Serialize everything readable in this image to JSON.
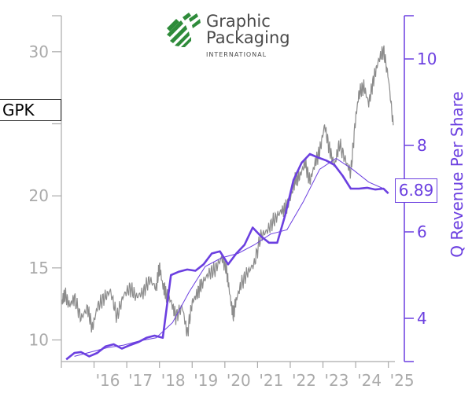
{
  "ticker": "GPK",
  "last_value_label": "6.89",
  "logo": {
    "line1": "Graphic",
    "line2": "Packaging",
    "line3": "INTERNATIONAL",
    "icon": "leaf-stripes-icon",
    "color": "#2e8b3a"
  },
  "colors": {
    "price": "#8c8c8c",
    "revenue": "#6b3fe0",
    "left_axis": "#aaaaaa",
    "right_axis": "#6b3fe0"
  },
  "chart_data": {
    "type": "line",
    "title": "",
    "xlabel": "",
    "ylabel_left": "",
    "ylabel_right": "Q Revenue Per Share",
    "x_tick_labels": [
      "'16",
      "'17",
      "'18",
      "'19",
      "'20",
      "'21",
      "'22",
      "'23",
      "'24",
      "'25"
    ],
    "x_range": [
      2015.0,
      2025.2
    ],
    "left_axis": {
      "ylim": [
        8.5,
        32.5
      ],
      "ticks": [
        10,
        15,
        20,
        25,
        30
      ],
      "tick_labels": [
        "10",
        "15",
        "20",
        "",
        "30"
      ]
    },
    "right_axis": {
      "ylim": [
        3.0,
        11.0
      ],
      "ticks": [
        4,
        6,
        8,
        10
      ],
      "tick_labels": [
        "4",
        "6",
        "8",
        "10"
      ]
    },
    "grid": false,
    "series": [
      {
        "name": "GPK",
        "axis": "left",
        "x": [
          2015.0,
          2015.1,
          2015.25,
          2015.4,
          2015.6,
          2015.8,
          2015.95,
          2016.1,
          2016.3,
          2016.5,
          2016.7,
          2016.9,
          2017.1,
          2017.3,
          2017.5,
          2017.7,
          2017.9,
          2018.0,
          2018.1,
          2018.2,
          2018.35,
          2018.5,
          2018.7,
          2018.85,
          2019.0,
          2019.15,
          2019.3,
          2019.5,
          2019.7,
          2019.9,
          2020.05,
          2020.15,
          2020.25,
          2020.35,
          2020.5,
          2020.7,
          2020.9,
          2021.1,
          2021.3,
          2021.5,
          2021.7,
          2021.85,
          2022.0,
          2022.15,
          2022.3,
          2022.45,
          2022.6,
          2022.75,
          2022.9,
          2023.05,
          2023.2,
          2023.35,
          2023.5,
          2023.7,
          2023.85,
          2024.0,
          2024.1,
          2024.25,
          2024.4,
          2024.55,
          2024.7,
          2024.85,
          2025.0,
          2025.15
        ],
        "y": [
          12.5,
          13.2,
          12.4,
          12.9,
          11.5,
          12.2,
          10.8,
          12.3,
          12.9,
          13.4,
          11.6,
          13.1,
          13.6,
          13.0,
          13.3,
          14.2,
          13.6,
          15.1,
          13.8,
          13.2,
          12.7,
          11.6,
          12.3,
          10.4,
          12.6,
          13.2,
          13.9,
          14.6,
          14.9,
          15.7,
          14.9,
          13.2,
          11.7,
          12.8,
          13.9,
          14.7,
          15.3,
          17.2,
          17.6,
          18.3,
          18.9,
          19.1,
          19.8,
          21.1,
          21.4,
          22.3,
          21.0,
          22.2,
          23.1,
          24.9,
          23.2,
          22.1,
          23.6,
          22.4,
          21.6,
          25.4,
          27.1,
          27.6,
          26.4,
          28.1,
          29.4,
          30.1,
          28.2,
          24.9
        ]
      },
      {
        "name": "Q Revenue Per Share",
        "axis": "right",
        "x": [
          2015.15,
          2015.4,
          2015.6,
          2015.85,
          2016.1,
          2016.35,
          2016.6,
          2016.85,
          2017.1,
          2017.35,
          2017.6,
          2017.85,
          2018.1,
          2018.35,
          2018.6,
          2018.85,
          2019.1,
          2019.35,
          2019.6,
          2019.85,
          2020.1,
          2020.35,
          2020.6,
          2020.85,
          2021.1,
          2021.35,
          2021.6,
          2021.85,
          2022.1,
          2022.35,
          2022.6,
          2022.85,
          2023.1,
          2023.35,
          2023.6,
          2023.85,
          2024.1,
          2024.35,
          2024.6,
          2024.85,
          2025.0
        ],
        "y": [
          3.05,
          3.2,
          3.22,
          3.12,
          3.2,
          3.35,
          3.4,
          3.3,
          3.38,
          3.45,
          3.55,
          3.6,
          3.55,
          5.0,
          5.08,
          5.13,
          5.1,
          5.25,
          5.5,
          5.55,
          5.25,
          5.5,
          5.7,
          6.1,
          5.9,
          5.75,
          5.75,
          6.4,
          7.2,
          7.6,
          7.8,
          7.72,
          7.65,
          7.55,
          7.3,
          7.0,
          7.0,
          7.02,
          6.98,
          7.0,
          6.89
        ]
      },
      {
        "name": "",
        "axis": "right",
        "x": [
          2015.4,
          2015.9,
          2016.4,
          2016.9,
          2017.4,
          2017.9,
          2018.4,
          2018.9,
          2019.4,
          2019.9,
          2020.4,
          2020.9,
          2021.4,
          2021.9,
          2022.4,
          2022.9,
          2023.4,
          2023.9,
          2024.4,
          2024.85
        ],
        "y": [
          3.12,
          3.22,
          3.32,
          3.38,
          3.48,
          3.55,
          3.9,
          4.6,
          5.2,
          5.4,
          5.5,
          5.7,
          5.95,
          6.05,
          6.7,
          7.45,
          7.7,
          7.45,
          7.15,
          7.0
        ]
      }
    ]
  }
}
